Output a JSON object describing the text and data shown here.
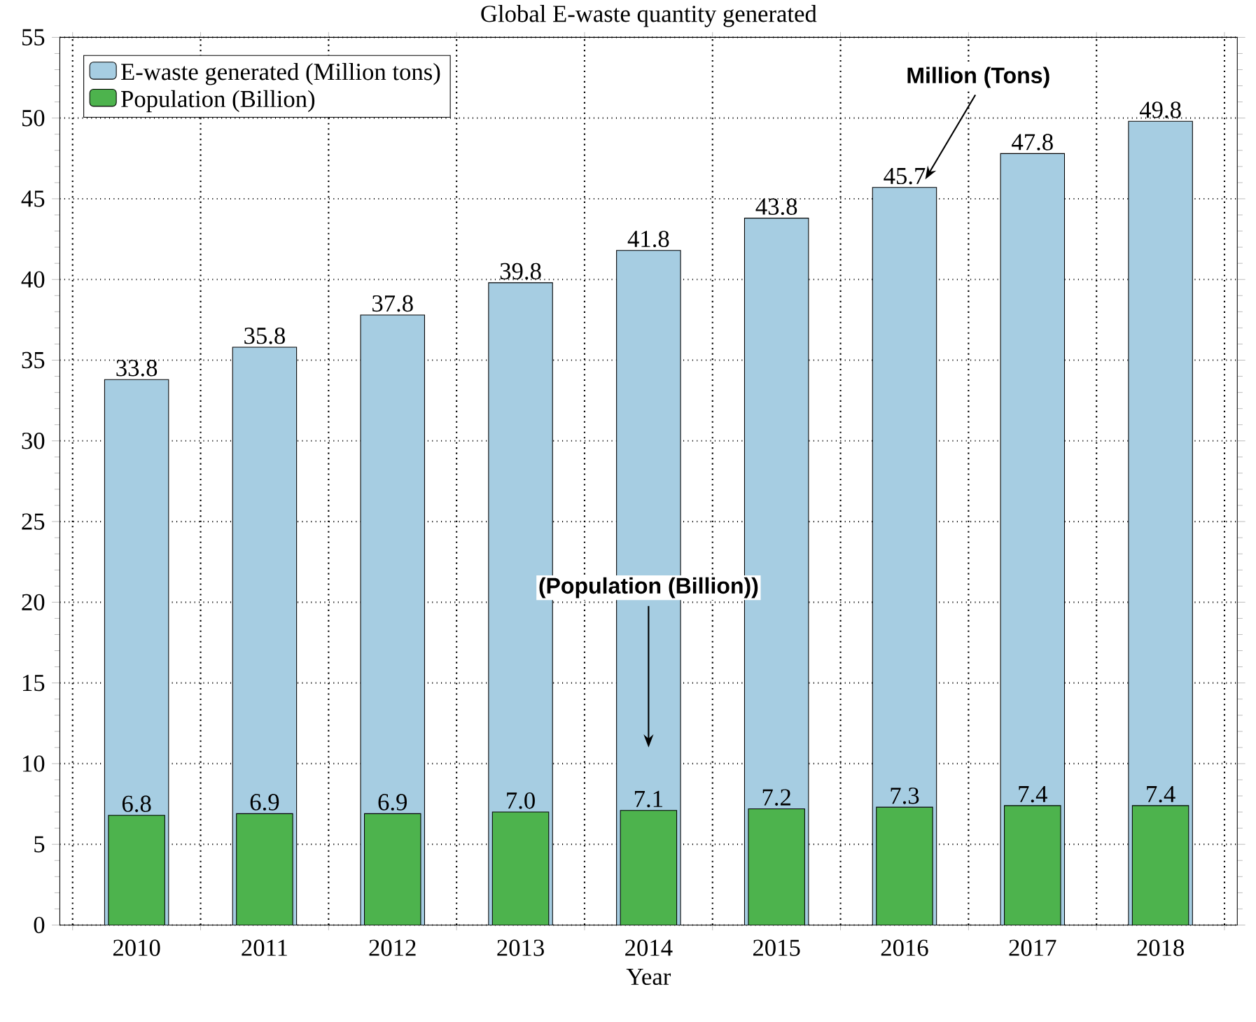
{
  "chart_data": {
    "type": "bar",
    "title": "Global E-waste quantity generated",
    "xlabel": "Year",
    "categories": [
      "2010",
      "2011",
      "2012",
      "2013",
      "2014",
      "2015",
      "2016",
      "2017",
      "2018"
    ],
    "series": [
      {
        "name": "E-waste generated (Million tons)",
        "color": "#a6cde2",
        "values": [
          33.8,
          35.8,
          37.8,
          39.8,
          41.8,
          43.8,
          45.7,
          47.8,
          49.8
        ],
        "value_labels": [
          "33.8",
          "35.8",
          "37.8",
          "39.8",
          "41.8",
          "43.8",
          "45.7",
          "47.8",
          "49.8"
        ]
      },
      {
        "name": "Population (Billion)",
        "color": "#4db34d",
        "values": [
          6.8,
          6.9,
          6.9,
          7.0,
          7.1,
          7.2,
          7.3,
          7.4,
          7.4
        ],
        "value_labels": [
          "6.8",
          "6.9",
          "6.9",
          "7.0",
          "7.1",
          "7.2",
          "7.3",
          "7.4",
          "7.4"
        ]
      }
    ],
    "ylim": [
      0,
      55
    ],
    "yticks": [
      0,
      5,
      10,
      15,
      20,
      25,
      30,
      35,
      40,
      45,
      50,
      55
    ],
    "grid": true,
    "legend": "top left",
    "annotations": [
      "Million (Tons)",
      "(Population (Billion))"
    ]
  }
}
